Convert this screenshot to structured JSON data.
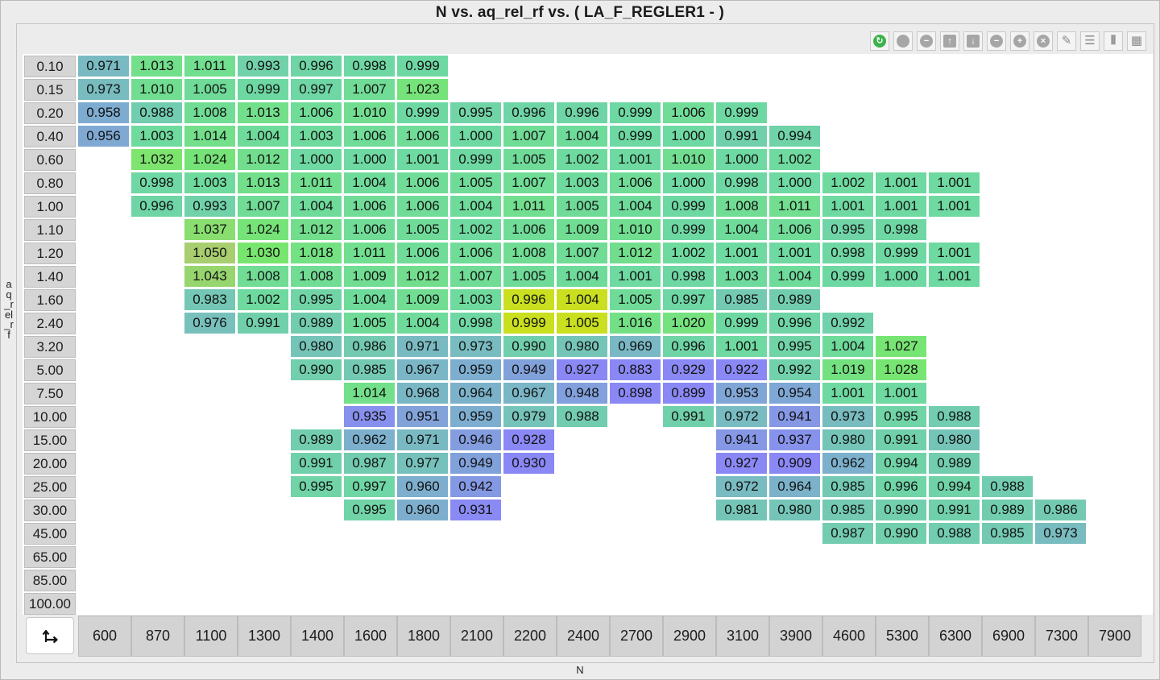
{
  "window": {
    "title": "N vs. aq_rel_rf vs. ( LA_F_REGLER1 -   )"
  },
  "toolbar": {
    "buttons": [
      {
        "icon": "refresh-icon",
        "glyph": "↻",
        "style": "green"
      },
      {
        "icon": "circle-icon",
        "glyph": "",
        "style": ""
      },
      {
        "icon": "minus-circle-icon",
        "glyph": "−",
        "style": ""
      },
      {
        "icon": "arrow-up-icon",
        "glyph": "↑",
        "style": "sq"
      },
      {
        "icon": "arrow-down-icon",
        "glyph": "↓",
        "style": "sq"
      },
      {
        "icon": "remove-icon",
        "glyph": "−",
        "style": ""
      },
      {
        "icon": "add-icon",
        "glyph": "+",
        "style": ""
      },
      {
        "icon": "close-icon",
        "glyph": "×",
        "style": ""
      },
      {
        "icon": "pencil-icon",
        "glyph": "✎",
        "style": "plain"
      },
      {
        "icon": "rows-icon",
        "glyph": "☰",
        "style": "plain"
      },
      {
        "icon": "columns-icon",
        "glyph": "⦀",
        "style": "plain"
      },
      {
        "icon": "grid-icon",
        "glyph": "▦",
        "style": "plain"
      }
    ]
  },
  "colors": {
    "low": "#8a88f5",
    "mid": "#6ed9a2",
    "high": "#c9df1f"
  },
  "chart_data": {
    "type": "heatmap",
    "title": "N vs. aq_rel_rf vs. ( LA_F_REGLER1 -   )",
    "xlabel": "N",
    "ylabel": "aq_rel_rf",
    "x": [
      "600",
      "870",
      "1100",
      "1300",
      "1400",
      "1600",
      "1800",
      "2100",
      "2200",
      "2400",
      "2700",
      "2900",
      "3100",
      "3900",
      "4600",
      "5300",
      "6300",
      "6900",
      "7300",
      "7900"
    ],
    "y": [
      "0.10",
      "0.15",
      "0.20",
      "0.40",
      "0.60",
      "0.80",
      "1.00",
      "1.10",
      "1.20",
      "1.40",
      "1.60",
      "2.40",
      "3.20",
      "5.00",
      "7.50",
      "10.00",
      "15.00",
      "20.00",
      "25.00",
      "30.00",
      "45.00",
      "65.00",
      "85.00",
      "100.00"
    ],
    "values": [
      [
        "0.971",
        "1.013",
        "1.011",
        "0.993",
        "0.996",
        "0.998",
        "0.999",
        null,
        null,
        null,
        null,
        null,
        null,
        null,
        null,
        null,
        null,
        null,
        null,
        null
      ],
      [
        "0.973",
        "1.010",
        "1.005",
        "0.999",
        "0.997",
        "1.007",
        "1.023",
        null,
        null,
        null,
        null,
        null,
        null,
        null,
        null,
        null,
        null,
        null,
        null,
        null
      ],
      [
        "0.958",
        "0.988",
        "1.008",
        "1.013",
        "1.006",
        "1.010",
        "0.999",
        "0.995",
        "0.996",
        "0.996",
        "0.999",
        "1.006",
        "0.999",
        null,
        null,
        null,
        null,
        null,
        null,
        null
      ],
      [
        "0.956",
        "1.003",
        "1.014",
        "1.004",
        "1.003",
        "1.006",
        "1.006",
        "1.000",
        "1.007",
        "1.004",
        "0.999",
        "1.000",
        "0.991",
        "0.994",
        null,
        null,
        null,
        null,
        null,
        null
      ],
      [
        null,
        "1.032",
        "1.024",
        "1.012",
        "1.000",
        "1.000",
        "1.001",
        "0.999",
        "1.005",
        "1.002",
        "1.001",
        "1.010",
        "1.000",
        "1.002",
        null,
        null,
        null,
        null,
        null,
        null
      ],
      [
        null,
        "0.998",
        "1.003",
        "1.013",
        "1.011",
        "1.004",
        "1.006",
        "1.005",
        "1.007",
        "1.003",
        "1.006",
        "1.000",
        "0.998",
        "1.000",
        "1.002",
        "1.001",
        "1.001",
        null,
        null,
        null
      ],
      [
        null,
        "0.996",
        "0.993",
        "1.007",
        "1.004",
        "1.006",
        "1.006",
        "1.004",
        "1.011",
        "1.005",
        "1.004",
        "0.999",
        "1.008",
        "1.011",
        "1.001",
        "1.001",
        "1.001",
        null,
        null,
        null
      ],
      [
        null,
        null,
        "1.037",
        "1.024",
        "1.012",
        "1.006",
        "1.005",
        "1.002",
        "1.006",
        "1.009",
        "1.010",
        "0.999",
        "1.004",
        "1.006",
        "0.995",
        "0.998",
        null,
        null,
        null,
        null
      ],
      [
        null,
        null,
        "1.050",
        "1.030",
        "1.018",
        "1.011",
        "1.006",
        "1.006",
        "1.008",
        "1.007",
        "1.012",
        "1.002",
        "1.001",
        "1.001",
        "0.998",
        "0.999",
        "1.001",
        null,
        null,
        null
      ],
      [
        null,
        null,
        "1.043",
        "1.008",
        "1.008",
        "1.009",
        "1.012",
        "1.007",
        "1.005",
        "1.004",
        "1.001",
        "0.998",
        "1.003",
        "1.004",
        "0.999",
        "1.000",
        "1.001",
        null,
        null,
        null
      ],
      [
        null,
        null,
        "0.983",
        "1.002",
        "0.995",
        "1.004",
        "1.009",
        "1.003",
        "0.996",
        "1.004",
        "1.005",
        "0.997",
        "0.985",
        "0.989",
        null,
        null,
        null,
        null,
        null,
        null
      ],
      [
        null,
        null,
        "0.976",
        "0.991",
        "0.989",
        "1.005",
        "1.004",
        "0.998",
        "0.999",
        "1.005",
        "1.016",
        "1.020",
        "0.999",
        "0.996",
        "0.992",
        null,
        null,
        null,
        null,
        null
      ],
      [
        null,
        null,
        null,
        null,
        "0.980",
        "0.986",
        "0.971",
        "0.973",
        "0.990",
        "0.980",
        "0.969",
        "0.996",
        "1.001",
        "0.995",
        "1.004",
        "1.027",
        null,
        null,
        null,
        null
      ],
      [
        null,
        null,
        null,
        null,
        "0.990",
        "0.985",
        "0.967",
        "0.959",
        "0.949",
        "0.927",
        "0.883",
        "0.929",
        "0.922",
        "0.992",
        "1.019",
        "1.028",
        null,
        null,
        null,
        null
      ],
      [
        null,
        null,
        null,
        null,
        null,
        "1.014",
        "0.968",
        "0.964",
        "0.967",
        "0.948",
        "0.898",
        "0.899",
        "0.953",
        "0.954",
        "1.001",
        "1.001",
        null,
        null,
        null,
        null
      ],
      [
        null,
        null,
        null,
        null,
        null,
        "0.935",
        "0.951",
        "0.959",
        "0.979",
        "0.988",
        null,
        "0.991",
        "0.972",
        "0.941",
        "0.973",
        "0.995",
        "0.988",
        null,
        null,
        null
      ],
      [
        null,
        null,
        null,
        null,
        "0.989",
        "0.962",
        "0.971",
        "0.946",
        "0.928",
        null,
        null,
        null,
        "0.941",
        "0.937",
        "0.980",
        "0.991",
        "0.980",
        null,
        null,
        null
      ],
      [
        null,
        null,
        null,
        null,
        "0.991",
        "0.987",
        "0.977",
        "0.949",
        "0.930",
        null,
        null,
        null,
        "0.927",
        "0.909",
        "0.962",
        "0.994",
        "0.989",
        null,
        null,
        null
      ],
      [
        null,
        null,
        null,
        null,
        "0.995",
        "0.997",
        "0.960",
        "0.942",
        null,
        null,
        null,
        null,
        "0.972",
        "0.964",
        "0.985",
        "0.996",
        "0.994",
        "0.988",
        null,
        null
      ],
      [
        null,
        null,
        null,
        null,
        null,
        "0.995",
        "0.960",
        "0.931",
        null,
        null,
        null,
        null,
        "0.981",
        "0.980",
        "0.985",
        "0.990",
        "0.991",
        "0.989",
        "0.986",
        null
      ],
      [
        null,
        null,
        null,
        null,
        null,
        null,
        null,
        null,
        null,
        null,
        null,
        null,
        null,
        null,
        "0.987",
        "0.990",
        "0.988",
        "0.985",
        "0.973",
        null
      ],
      [
        null,
        null,
        null,
        null,
        null,
        null,
        null,
        null,
        null,
        null,
        null,
        null,
        null,
        null,
        null,
        null,
        null,
        null,
        null,
        null
      ],
      [
        null,
        null,
        null,
        null,
        null,
        null,
        null,
        null,
        null,
        null,
        null,
        null,
        null,
        null,
        null,
        null,
        null,
        null,
        null,
        null
      ],
      [
        null,
        null,
        null,
        null,
        null,
        null,
        null,
        null,
        null,
        null,
        null,
        null,
        null,
        null,
        null,
        null,
        null,
        null,
        null,
        null
      ]
    ],
    "highlighted": [
      [
        10,
        8
      ],
      [
        10,
        9
      ],
      [
        11,
        8
      ],
      [
        11,
        9
      ]
    ],
    "grid": false
  }
}
